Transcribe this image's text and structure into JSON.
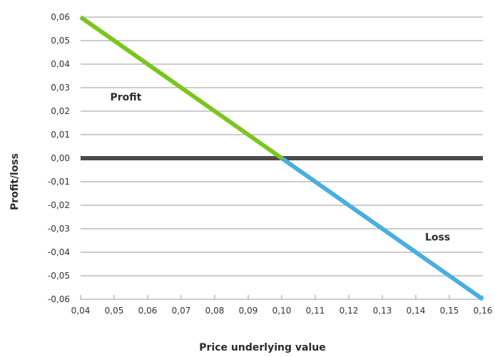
{
  "chart_data": {
    "type": "line",
    "title": "",
    "xlabel": "Price underlying value",
    "ylabel": "Profit/loss",
    "xlim": [
      0.04,
      0.16
    ],
    "ylim": [
      -0.06,
      0.06
    ],
    "x_ticks": [
      "0,04",
      "0,05",
      "0,06",
      "0,07",
      "0,08",
      "0,09",
      "0,10",
      "0,11",
      "0,12",
      "0,13",
      "0,14",
      "0,15",
      "0,16"
    ],
    "x_tick_values": [
      0.04,
      0.05,
      0.06,
      0.07,
      0.08,
      0.09,
      0.1,
      0.11,
      0.12,
      0.13,
      0.14,
      0.15,
      0.16
    ],
    "y_ticks": [
      "0,06",
      "0,05",
      "0,04",
      "0,03",
      "0,02",
      "0,01",
      "0,00",
      "-0,01",
      "-0,02",
      "-0,03",
      "-0,04",
      "-0,05",
      "-0,06"
    ],
    "y_tick_values": [
      0.06,
      0.05,
      0.04,
      0.03,
      0.02,
      0.01,
      0.0,
      -0.01,
      -0.02,
      -0.03,
      -0.04,
      -0.05,
      -0.06
    ],
    "grid": "horizontal",
    "zero_line": {
      "y": 0.0,
      "color": "#4a4a4a"
    },
    "series": [
      {
        "color": "#7cc520",
        "x": [
          0.04,
          0.1
        ],
        "y": [
          0.06,
          0.0
        ]
      },
      {
        "color": "#4aaee0",
        "x": [
          0.1,
          0.16
        ],
        "y": [
          0.0,
          -0.06
        ]
      }
    ],
    "annotations": [
      {
        "text": "Profit",
        "x": 0.0535,
        "y": 0.0245
      },
      {
        "text": "Loss",
        "x": 0.1465,
        "y": -0.035
      }
    ]
  }
}
